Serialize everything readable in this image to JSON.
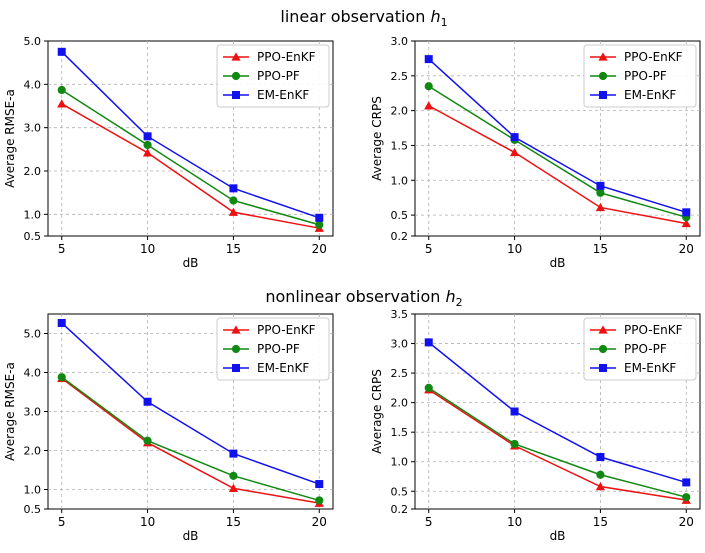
{
  "figure": {
    "row_titles": [
      {
        "text": "linear observation ",
        "symbol": "h",
        "subscript": "1"
      },
      {
        "text": "nonlinear observation ",
        "symbol": "h",
        "subscript": "2"
      }
    ]
  },
  "colors": {
    "PPO-EnKF": "#ee1111",
    "PPO-PF": "#118811",
    "EM-EnKF": "#1111ee"
  },
  "chart_data": [
    {
      "type": "line",
      "panel": "linear-rmse",
      "title": "linear observation h1",
      "xlabel": "dB",
      "ylabel": "Average RMSE-a",
      "x": [
        5,
        10,
        15,
        20
      ],
      "xlim": [
        4.2,
        20.8
      ],
      "xticks": [
        "5",
        "10",
        "15",
        "20"
      ],
      "ylim": [
        0.5,
        5.0
      ],
      "yticks": [
        "0.5",
        "1.0",
        "2.0",
        "3.0",
        "4.0",
        "5.0"
      ],
      "legend": "top-right",
      "grid": true,
      "series": [
        {
          "name": "PPO-EnKF",
          "marker": "triangle",
          "values": [
            3.55,
            2.42,
            1.05,
            0.68
          ]
        },
        {
          "name": "PPO-PF",
          "marker": "circle",
          "values": [
            3.87,
            2.6,
            1.32,
            0.76
          ]
        },
        {
          "name": "EM-EnKF",
          "marker": "square",
          "values": [
            4.75,
            2.8,
            1.6,
            0.92
          ]
        }
      ]
    },
    {
      "type": "line",
      "panel": "linear-crps",
      "title": "linear observation h1",
      "xlabel": "dB",
      "ylabel": "Average CRPS",
      "x": [
        5,
        10,
        15,
        20
      ],
      "xlim": [
        4.2,
        20.8
      ],
      "xticks": [
        "5",
        "10",
        "15",
        "20"
      ],
      "ylim": [
        0.2,
        3.0
      ],
      "yticks": [
        "0.2",
        "0.5",
        "1.0",
        "1.5",
        "2.0",
        "2.5",
        "3.0"
      ],
      "legend": "top-right",
      "grid": true,
      "series": [
        {
          "name": "PPO-EnKF",
          "marker": "triangle",
          "values": [
            2.07,
            1.4,
            0.61,
            0.38
          ]
        },
        {
          "name": "PPO-PF",
          "marker": "circle",
          "values": [
            2.35,
            1.58,
            0.82,
            0.47
          ]
        },
        {
          "name": "EM-EnKF",
          "marker": "square",
          "values": [
            2.74,
            1.62,
            0.92,
            0.54
          ]
        }
      ]
    },
    {
      "type": "line",
      "panel": "nonlinear-rmse",
      "title": "nonlinear observation h2",
      "xlabel": "dB",
      "ylabel": "Average RMSE-a",
      "x": [
        5,
        10,
        15,
        20
      ],
      "xlim": [
        4.2,
        20.8
      ],
      "xticks": [
        "5",
        "10",
        "15",
        "20"
      ],
      "ylim": [
        0.5,
        5.5
      ],
      "yticks": [
        "0.5",
        "1.0",
        "2.0",
        "3.0",
        "4.0",
        "5.0"
      ],
      "legend": "top-right",
      "grid": true,
      "series": [
        {
          "name": "PPO-EnKF",
          "marker": "triangle",
          "values": [
            3.85,
            2.2,
            1.03,
            0.65
          ]
        },
        {
          "name": "PPO-PF",
          "marker": "circle",
          "values": [
            3.88,
            2.25,
            1.35,
            0.72
          ]
        },
        {
          "name": "EM-EnKF",
          "marker": "square",
          "values": [
            5.27,
            3.25,
            1.92,
            1.14
          ]
        }
      ]
    },
    {
      "type": "line",
      "panel": "nonlinear-crps",
      "title": "nonlinear observation h2",
      "xlabel": "dB",
      "ylabel": "Average CRPS",
      "x": [
        5,
        10,
        15,
        20
      ],
      "xlim": [
        4.2,
        20.8
      ],
      "xticks": [
        "5",
        "10",
        "15",
        "20"
      ],
      "ylim": [
        0.2,
        3.5
      ],
      "yticks": [
        "0.2",
        "0.5",
        "1.0",
        "1.5",
        "2.0",
        "2.5",
        "3.0",
        "3.5"
      ],
      "legend": "top-right",
      "grid": true,
      "series": [
        {
          "name": "PPO-EnKF",
          "marker": "triangle",
          "values": [
            2.22,
            1.27,
            0.58,
            0.35
          ]
        },
        {
          "name": "PPO-PF",
          "marker": "circle",
          "values": [
            2.25,
            1.3,
            0.78,
            0.4
          ]
        },
        {
          "name": "EM-EnKF",
          "marker": "square",
          "values": [
            3.02,
            1.85,
            1.08,
            0.65
          ]
        }
      ]
    }
  ]
}
